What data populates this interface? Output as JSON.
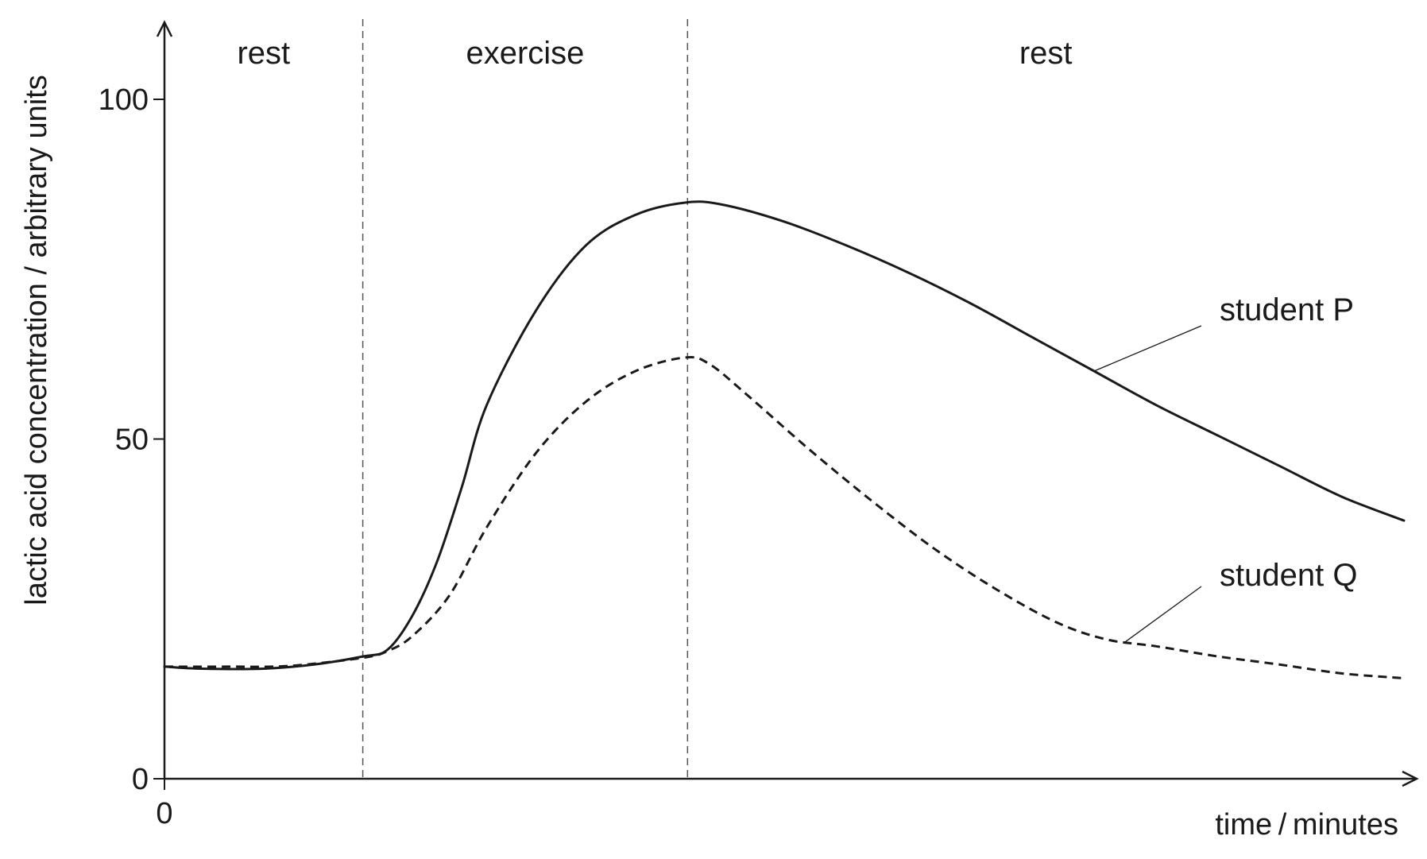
{
  "chart_data": {
    "type": "line",
    "title": "",
    "xlabel": "time / minutes",
    "ylabel": "lactic acid concentration / arbitrary units",
    "ylim": [
      0,
      110
    ],
    "xlim": [
      0,
      1
    ],
    "grid": false,
    "y_ticks": [
      {
        "value": 0,
        "label": "0"
      },
      {
        "value": 50,
        "label": "50"
      },
      {
        "value": 100,
        "label": "100"
      }
    ],
    "x_ticks": [
      {
        "value": 0,
        "label": "0"
      }
    ],
    "phases": [
      {
        "label": "rest",
        "start": 0.0,
        "end": 0.16
      },
      {
        "label": "exercise",
        "start": 0.16,
        "end": 0.422
      },
      {
        "label": "rest",
        "start": 0.422,
        "end": 1.0
      }
    ],
    "series": [
      {
        "name": "student P",
        "line_style": "solid",
        "color": "#1a1a1a",
        "points": [
          [
            0.0,
            16.5
          ],
          [
            0.03,
            16.2
          ],
          [
            0.08,
            16.2
          ],
          [
            0.12,
            16.8
          ],
          [
            0.16,
            18.0
          ],
          [
            0.18,
            19.0
          ],
          [
            0.2,
            24.0
          ],
          [
            0.22,
            32.0
          ],
          [
            0.24,
            43.0
          ],
          [
            0.26,
            55.0
          ],
          [
            0.3,
            69.0
          ],
          [
            0.34,
            78.5
          ],
          [
            0.38,
            83.0
          ],
          [
            0.42,
            84.8
          ],
          [
            0.45,
            84.5
          ],
          [
            0.5,
            82.0
          ],
          [
            0.55,
            78.5
          ],
          [
            0.6,
            74.5
          ],
          [
            0.65,
            70.0
          ],
          [
            0.7,
            65.0
          ],
          [
            0.75,
            60.0
          ],
          [
            0.8,
            55.0
          ],
          [
            0.85,
            50.5
          ],
          [
            0.9,
            46.0
          ],
          [
            0.95,
            41.5
          ],
          [
            1.0,
            38.0
          ]
        ]
      },
      {
        "name": "student Q",
        "line_style": "dashed",
        "color": "#1a1a1a",
        "points": [
          [
            0.0,
            16.5
          ],
          [
            0.05,
            16.5
          ],
          [
            0.1,
            16.6
          ],
          [
            0.16,
            17.8
          ],
          [
            0.18,
            18.8
          ],
          [
            0.2,
            21.0
          ],
          [
            0.23,
            27.0
          ],
          [
            0.26,
            37.0
          ],
          [
            0.3,
            48.0
          ],
          [
            0.34,
            55.5
          ],
          [
            0.38,
            60.0
          ],
          [
            0.42,
            62.0
          ],
          [
            0.44,
            61.0
          ],
          [
            0.47,
            56.5
          ],
          [
            0.52,
            48.5
          ],
          [
            0.57,
            41.0
          ],
          [
            0.62,
            34.0
          ],
          [
            0.67,
            28.0
          ],
          [
            0.72,
            23.0
          ],
          [
            0.76,
            20.5
          ],
          [
            0.8,
            19.5
          ],
          [
            0.85,
            18.0
          ],
          [
            0.9,
            16.8
          ],
          [
            0.95,
            15.5
          ],
          [
            1.0,
            14.8
          ]
        ]
      }
    ],
    "annotations": [
      {
        "series": "student P",
        "text": "student P",
        "at_x": 0.75
      },
      {
        "series": "student Q",
        "text": "student Q",
        "at_x": 0.775
      }
    ]
  }
}
